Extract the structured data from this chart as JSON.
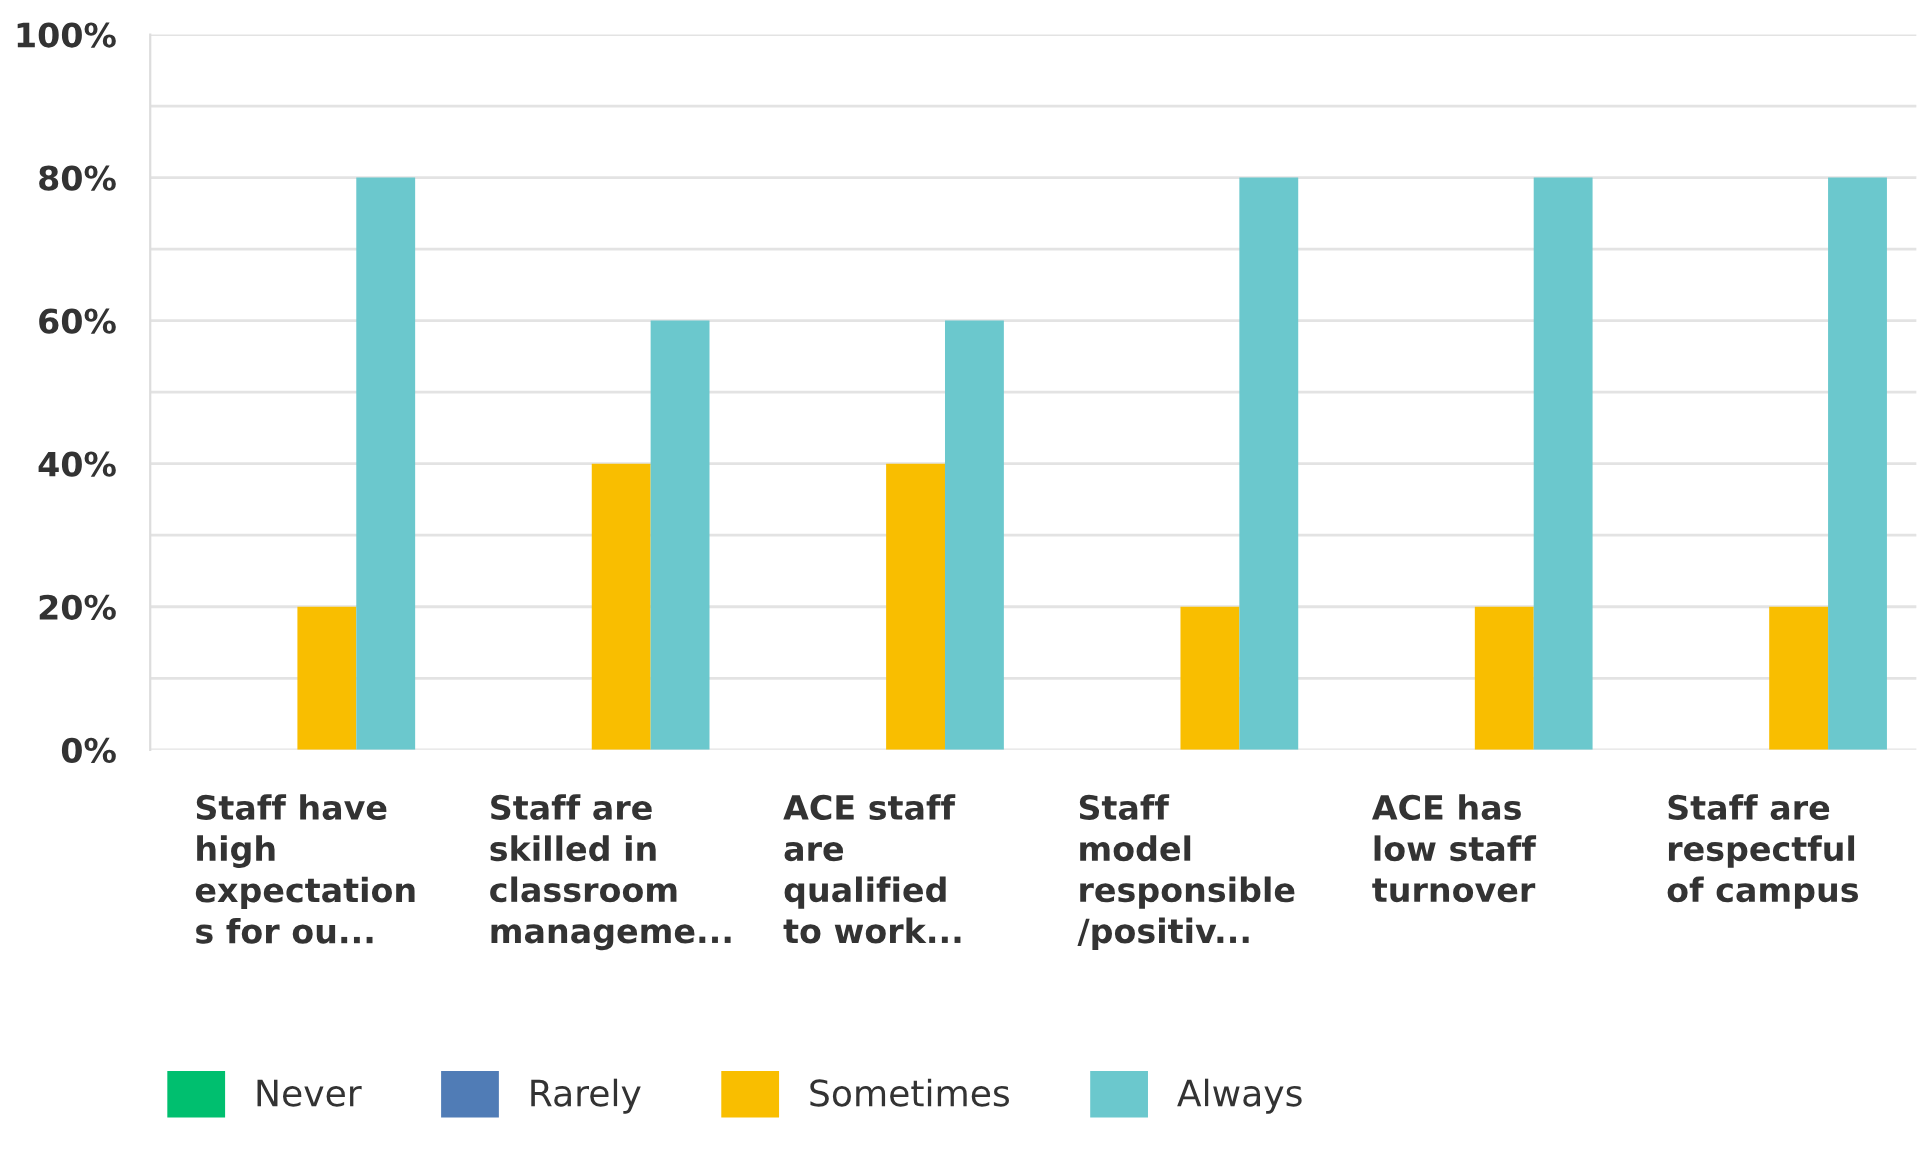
{
  "chart_data": {
    "type": "bar",
    "categories": [
      "Staff have\nhigh\nexpectation\ns for ou...",
      "Staff are\nskilled in\nclassroom\nmanageme...",
      "ACE staff\nare\nqualified\nto work...",
      "Staff\nmodel\nresponsible\n/positiv...",
      "ACE has\nlow staff\nturnover",
      "Staff are\nrespectful\nof campus"
    ],
    "series": [
      {
        "name": "Never",
        "color": "#00bf6f",
        "values": [
          0,
          0,
          0,
          0,
          0,
          0
        ]
      },
      {
        "name": "Rarely",
        "color": "#507cb6",
        "values": [
          0,
          0,
          0,
          0,
          0,
          0
        ]
      },
      {
        "name": "Sometimes",
        "color": "#f9be00",
        "values": [
          20,
          40,
          40,
          20,
          20,
          20
        ]
      },
      {
        "name": "Always",
        "color": "#6bc8cd",
        "values": [
          80,
          60,
          60,
          80,
          80,
          80
        ]
      }
    ],
    "ylim": [
      0,
      100
    ],
    "yticks": [
      {
        "value": 0,
        "label": "0%"
      },
      {
        "value": 10,
        "label": null
      },
      {
        "value": 20,
        "label": "20%"
      },
      {
        "value": 30,
        "label": null
      },
      {
        "value": 40,
        "label": "40%"
      },
      {
        "value": 50,
        "label": null
      },
      {
        "value": 60,
        "label": "60%"
      },
      {
        "value": 70,
        "label": null
      },
      {
        "value": 80,
        "label": "80%"
      },
      {
        "value": 90,
        "label": null
      },
      {
        "value": 100,
        "label": "100%"
      }
    ],
    "grid": "y",
    "legend": "bottom left"
  }
}
